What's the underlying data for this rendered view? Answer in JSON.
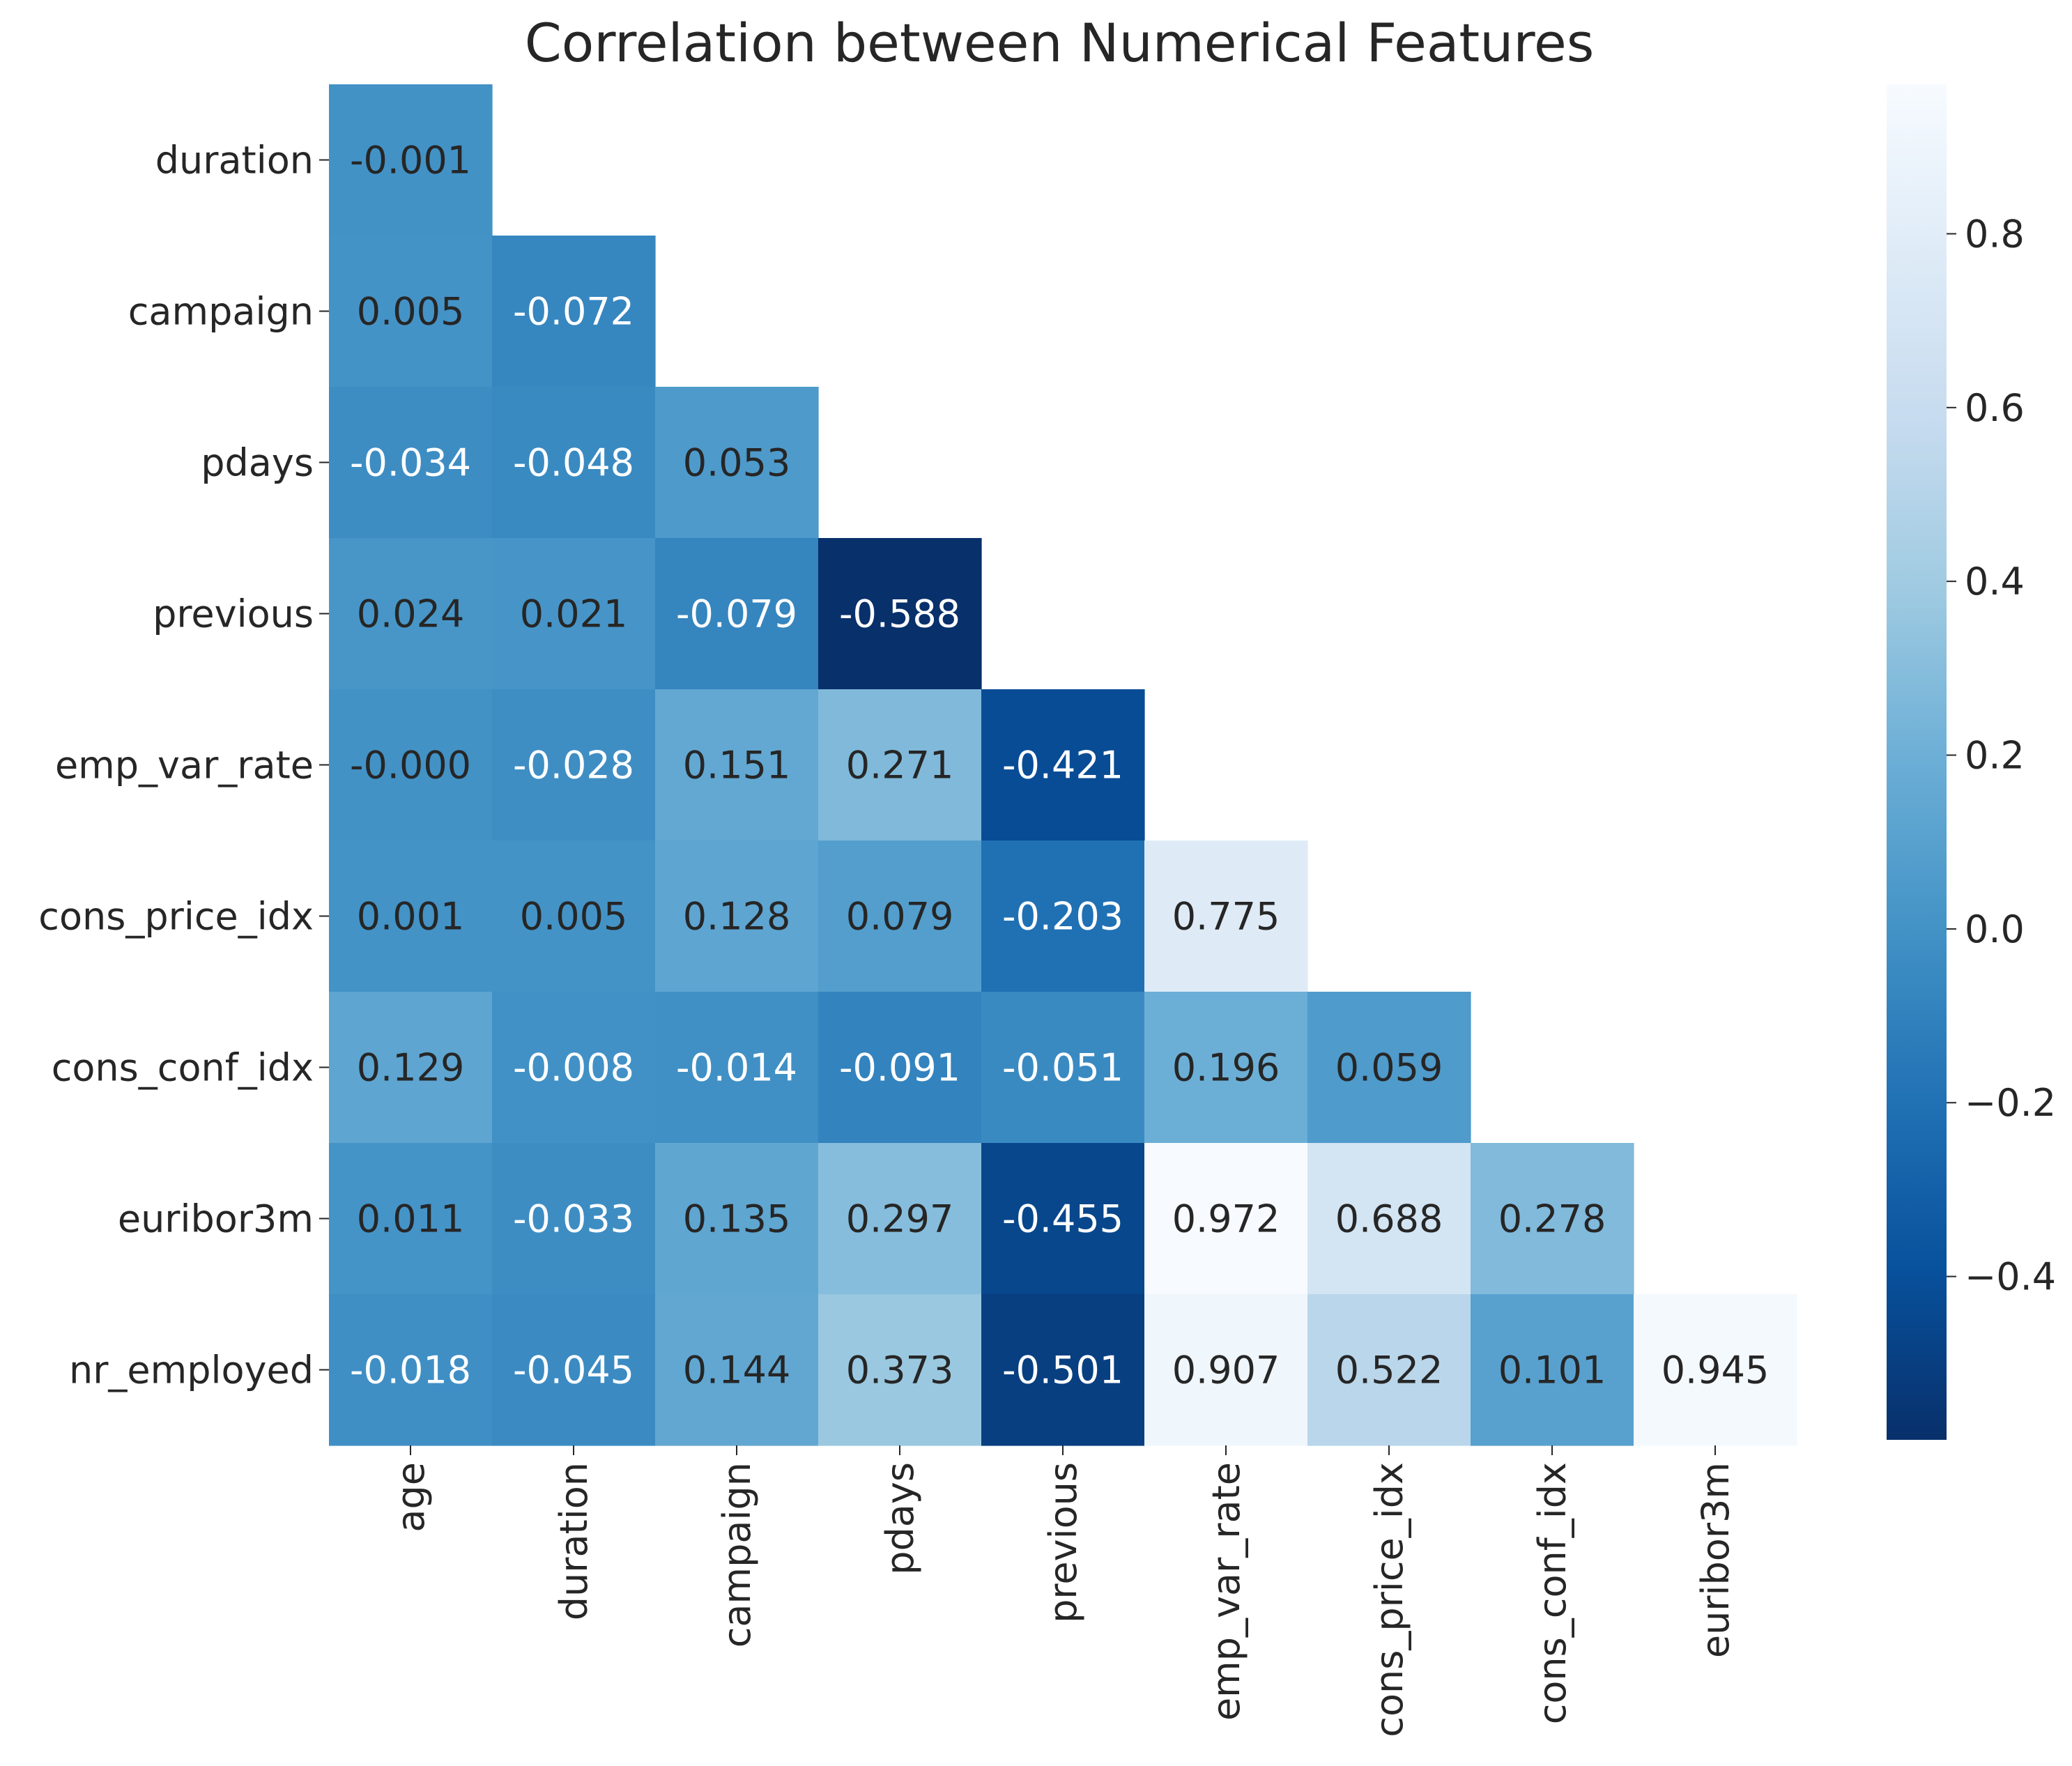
{
  "chart_data": {
    "type": "heatmap",
    "title": "Correlation between Numerical Features",
    "xlabel": "",
    "ylabel": "",
    "colormap": "Blues_r",
    "mask": "upper-triangle",
    "x_labels": [
      "age",
      "duration",
      "campaign",
      "pdays",
      "previous",
      "emp_var_rate",
      "cons_price_idx",
      "cons_conf_idx",
      "euribor3m"
    ],
    "y_labels": [
      "duration",
      "campaign",
      "pdays",
      "previous",
      "emp_var_rate",
      "cons_price_idx",
      "cons_conf_idx",
      "euribor3m",
      "nr_employed"
    ],
    "rows": [
      [
        "-0.001"
      ],
      [
        "0.005",
        "-0.072"
      ],
      [
        "-0.034",
        "-0.048",
        "0.053"
      ],
      [
        "0.024",
        "0.021",
        "-0.079",
        "-0.588"
      ],
      [
        "-0.000",
        "-0.028",
        "0.151",
        "0.271",
        "-0.421"
      ],
      [
        "0.001",
        "0.005",
        "0.128",
        "0.079",
        "-0.203",
        "0.775"
      ],
      [
        "0.129",
        "-0.008",
        "-0.014",
        "-0.091",
        "-0.051",
        "0.196",
        "0.059"
      ],
      [
        "0.011",
        "-0.033",
        "0.135",
        "0.297",
        "-0.455",
        "0.972",
        "0.688",
        "0.278"
      ],
      [
        "-0.018",
        "-0.045",
        "0.144",
        "0.373",
        "-0.501",
        "0.907",
        "0.522",
        "0.101",
        "0.945"
      ]
    ],
    "colorbar": {
      "range": [
        -0.588,
        0.972
      ],
      "ticks": [
        -0.4,
        -0.2,
        0.0,
        0.2,
        0.4,
        0.6,
        0.8
      ],
      "tick_labels": [
        "−0.4",
        "−0.2",
        "0.0",
        "0.2",
        "0.4",
        "0.6",
        "0.8"
      ]
    },
    "grid": false,
    "legend": "colorbar-right"
  }
}
